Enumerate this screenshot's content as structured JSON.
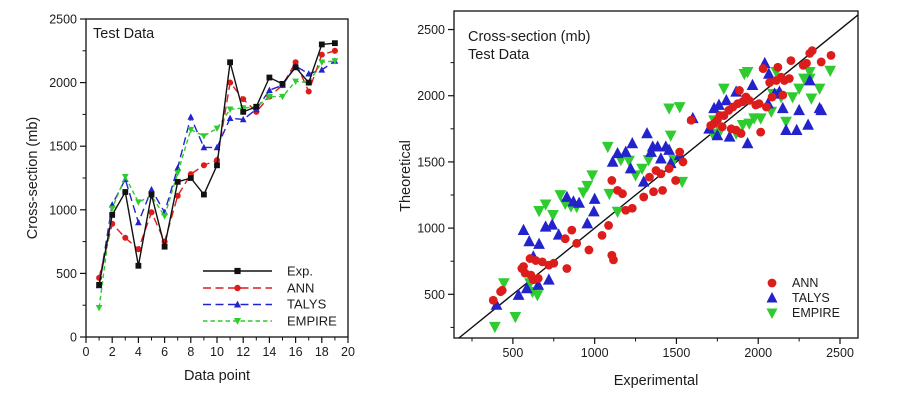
{
  "figure": {
    "background": "#ffffff",
    "axis_color": "#111111",
    "text_color": "#1c1c1c"
  },
  "chart_data": [
    {
      "type": "line",
      "title": "Test Data",
      "xlabel": "Data point",
      "ylabel": "Cross-section (mb)",
      "xlim": [
        0,
        20
      ],
      "ylim": [
        0,
        2500
      ],
      "xticks": [
        0,
        2,
        4,
        6,
        8,
        10,
        12,
        14,
        16,
        18,
        20
      ],
      "yticks": [
        0,
        500,
        1000,
        1500,
        2000,
        2500
      ],
      "grid": false,
      "legend_position": "inside-bottom-right",
      "x": [
        1,
        2,
        3,
        4,
        5,
        6,
        7,
        8,
        9,
        10,
        11,
        12,
        13,
        14,
        15,
        16,
        17,
        18,
        19
      ],
      "series": [
        {
          "name": "Exp.",
          "color": "#111111",
          "marker": "square",
          "line": "solid",
          "values": [
            410,
            960,
            1140,
            560,
            1120,
            710,
            1220,
            1250,
            1120,
            1350,
            2160,
            1770,
            1810,
            2040,
            1990,
            2120,
            2000,
            2300,
            2310
          ]
        },
        {
          "name": "ANN",
          "color": "#dd1c1c",
          "marker": "circle",
          "line": "dash",
          "values": [
            465,
            890,
            780,
            690,
            980,
            750,
            1110,
            1280,
            1350,
            1390,
            2000,
            1870,
            1770,
            1890,
            1980,
            2160,
            1930,
            2220,
            2250
          ]
        },
        {
          "name": "TALYS",
          "color": "#2323cc",
          "marker": "triangle-up",
          "line": "dash",
          "values": [
            405,
            1040,
            1240,
            900,
            1160,
            980,
            1330,
            1730,
            1490,
            1490,
            1720,
            1710,
            1790,
            1940,
            1980,
            2130,
            2070,
            2100,
            2170
          ]
        },
        {
          "name": "EMPIRE",
          "color": "#2ecc2e",
          "marker": "triangle-down",
          "line": "shortdash",
          "values": [
            230,
            1010,
            1260,
            1060,
            1110,
            950,
            1290,
            1630,
            1580,
            1640,
            1790,
            1800,
            1810,
            1890,
            1890,
            2010,
            2000,
            2160,
            2170
          ]
        }
      ]
    },
    {
      "type": "scatter",
      "title_line1": "Cross-section (mb)",
      "title_line2": "Test Data",
      "xlabel": "Experimental",
      "ylabel": "Theoretical",
      "xlim": [
        140,
        2610
      ],
      "ylim": [
        170,
        2640
      ],
      "xticks": [
        500,
        1000,
        1500,
        2000,
        2500
      ],
      "yticks": [
        500,
        1000,
        1500,
        2000,
        2500
      ],
      "grid": false,
      "identity_line": true,
      "legend_position": "inside-bottom-right",
      "series": [
        {
          "name": "ANN",
          "color": "#dd1c1c",
          "marker": "circle",
          "points": [
            [
              380,
              455
            ],
            [
              425,
              520
            ],
            [
              435,
              530
            ],
            [
              555,
              695
            ],
            [
              565,
              710
            ],
            [
              575,
              660
            ],
            [
              605,
              770
            ],
            [
              610,
              645
            ],
            [
              625,
              610
            ],
            [
              640,
              755
            ],
            [
              655,
              620
            ],
            [
              680,
              745
            ],
            [
              720,
              720
            ],
            [
              750,
              735
            ],
            [
              830,
              695
            ],
            [
              820,
              920
            ],
            [
              860,
              985
            ],
            [
              890,
              885
            ],
            [
              965,
              835
            ],
            [
              1045,
              945
            ],
            [
              1085,
              1020
            ],
            [
              1105,
              1360
            ],
            [
              1140,
              1285
            ],
            [
              1170,
              1260
            ],
            [
              1190,
              1135
            ],
            [
              1105,
              795
            ],
            [
              1115,
              760
            ],
            [
              1230,
              1150
            ],
            [
              1300,
              1235
            ],
            [
              1335,
              1385
            ],
            [
              1360,
              1275
            ],
            [
              1375,
              1435
            ],
            [
              1405,
              1410
            ],
            [
              1415,
              1285
            ],
            [
              1455,
              1450
            ],
            [
              1495,
              1360
            ],
            [
              1520,
              1575
            ],
            [
              1540,
              1500
            ],
            [
              1590,
              1815
            ],
            [
              1710,
              1775
            ],
            [
              1730,
              1790
            ],
            [
              1750,
              1815
            ],
            [
              1765,
              1850
            ],
            [
              1780,
              1765
            ],
            [
              1790,
              1850
            ],
            [
              1820,
              1890
            ],
            [
              1835,
              1750
            ],
            [
              1845,
              1915
            ],
            [
              1865,
              1740
            ],
            [
              1875,
              1940
            ],
            [
              1885,
              2040
            ],
            [
              1895,
              1715
            ],
            [
              1905,
              1955
            ],
            [
              1925,
              1990
            ],
            [
              1945,
              1965
            ],
            [
              1985,
              1930
            ],
            [
              2005,
              1940
            ],
            [
              2015,
              1725
            ],
            [
              2030,
              2205
            ],
            [
              2050,
              1915
            ],
            [
              2070,
              2100
            ],
            [
              2085,
              1990
            ],
            [
              2110,
              2115
            ],
            [
              2120,
              2215
            ],
            [
              2140,
              2140
            ],
            [
              2150,
              2005
            ],
            [
              2160,
              2115
            ],
            [
              2190,
              2130
            ],
            [
              2200,
              2265
            ],
            [
              2275,
              2230
            ],
            [
              2295,
              2245
            ],
            [
              2315,
              2320
            ],
            [
              2330,
              2340
            ],
            [
              2385,
              2255
            ],
            [
              2445,
              2305
            ]
          ]
        },
        {
          "name": "TALYS",
          "color": "#2323cc",
          "marker": "triangle-up",
          "points": [
            [
              400,
              420
            ],
            [
              535,
              495
            ],
            [
              585,
              545
            ],
            [
              625,
              785
            ],
            [
              655,
              570
            ],
            [
              720,
              610
            ],
            [
              565,
              985
            ],
            [
              600,
              900
            ],
            [
              660,
              880
            ],
            [
              700,
              1010
            ],
            [
              740,
              1025
            ],
            [
              780,
              950
            ],
            [
              830,
              1235
            ],
            [
              870,
              1200
            ],
            [
              905,
              1190
            ],
            [
              955,
              1035
            ],
            [
              995,
              1125
            ],
            [
              1000,
              1220
            ],
            [
              1110,
              1500
            ],
            [
              1140,
              1565
            ],
            [
              1190,
              1575
            ],
            [
              1220,
              1450
            ],
            [
              1230,
              1640
            ],
            [
              1300,
              1350
            ],
            [
              1320,
              1715
            ],
            [
              1345,
              1575
            ],
            [
              1355,
              1615
            ],
            [
              1385,
              1615
            ],
            [
              1405,
              1525
            ],
            [
              1435,
              1615
            ],
            [
              1455,
              1590
            ],
            [
              1465,
              1490
            ],
            [
              1520,
              1550
            ],
            [
              1600,
              1830
            ],
            [
              1700,
              1750
            ],
            [
              1730,
              1905
            ],
            [
              1750,
              1700
            ],
            [
              1760,
              1930
            ],
            [
              1805,
              1965
            ],
            [
              1825,
              1690
            ],
            [
              1865,
              2030
            ],
            [
              1935,
              1640
            ],
            [
              1965,
              2080
            ],
            [
              2040,
              2245
            ],
            [
              2060,
              1940
            ],
            [
              2065,
              2165
            ],
            [
              2100,
              2015
            ],
            [
              2130,
              2030
            ],
            [
              2150,
              1905
            ],
            [
              2170,
              1740
            ],
            [
              2235,
              1740
            ],
            [
              2250,
              1890
            ],
            [
              2305,
              1780
            ],
            [
              2315,
              2115
            ],
            [
              2375,
              1905
            ],
            [
              2385,
              1890
            ]
          ]
        },
        {
          "name": "EMPIRE",
          "color": "#2ecc2e",
          "marker": "triangle-down",
          "points": [
            [
              390,
              255
            ],
            [
              445,
              585
            ],
            [
              515,
              330
            ],
            [
              605,
              585
            ],
            [
              620,
              520
            ],
            [
              650,
              495
            ],
            [
              660,
              1130
            ],
            [
              700,
              1180
            ],
            [
              745,
              1100
            ],
            [
              790,
              1250
            ],
            [
              820,
              1185
            ],
            [
              855,
              1165
            ],
            [
              890,
              1160
            ],
            [
              930,
              1270
            ],
            [
              955,
              1320
            ],
            [
              985,
              1400
            ],
            [
              1080,
              1615
            ],
            [
              1090,
              1260
            ],
            [
              1140,
              1125
            ],
            [
              1160,
              1515
            ],
            [
              1210,
              1510
            ],
            [
              1250,
              1400
            ],
            [
              1290,
              1450
            ],
            [
              1330,
              1515
            ],
            [
              1455,
              1905
            ],
            [
              1465,
              1700
            ],
            [
              1485,
              1515
            ],
            [
              1520,
              1915
            ],
            [
              1535,
              1350
            ],
            [
              1720,
              1715
            ],
            [
              1730,
              1815
            ],
            [
              1770,
              1740
            ],
            [
              1790,
              2055
            ],
            [
              1865,
              1715
            ],
            [
              1905,
              1780
            ],
            [
              1915,
              2165
            ],
            [
              1935,
              2180
            ],
            [
              1945,
              1790
            ],
            [
              1975,
              1830
            ],
            [
              2015,
              1830
            ],
            [
              2080,
              1880
            ],
            [
              2090,
              2015
            ],
            [
              2110,
              2180
            ],
            [
              2140,
              1990
            ],
            [
              2170,
              1805
            ],
            [
              2210,
              1990
            ],
            [
              2250,
              2055
            ],
            [
              2280,
              2130
            ],
            [
              2315,
              2130
            ],
            [
              2315,
              2180
            ],
            [
              2325,
              1980
            ],
            [
              2375,
              2055
            ],
            [
              2440,
              2190
            ]
          ]
        }
      ]
    }
  ]
}
